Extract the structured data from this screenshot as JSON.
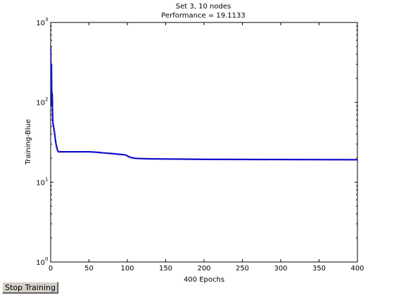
{
  "figure": {
    "title_line1": "Set 3, 10 nodes",
    "title_line2": "Performance = 19.1133"
  },
  "stop_button_label": "Stop Training",
  "colors": {
    "line": "#1010cc",
    "axes": "#000000",
    "background": "#ffffff",
    "button_face": "#d4d0c8"
  },
  "chart_data": {
    "type": "line",
    "title": "Set 3, 10 nodes\nPerformance = 19.1133",
    "xlabel": "400 Epochs",
    "ylabel": "Training-Blue",
    "xlim": [
      0,
      400
    ],
    "ylim": [
      1,
      1000
    ],
    "yscale": "log",
    "grid": false,
    "xticks": [
      0,
      50,
      100,
      150,
      200,
      250,
      300,
      350,
      400
    ],
    "xtick_labels": [
      "0",
      "50",
      "100",
      "150",
      "200",
      "250",
      "300",
      "350",
      "400"
    ],
    "yticks": [
      1,
      10,
      100,
      1000
    ],
    "ytick_labels": [
      {
        "base": "10",
        "exp": "0"
      },
      {
        "base": "10",
        "exp": "1"
      },
      {
        "base": "10",
        "exp": "2"
      },
      {
        "base": "10",
        "exp": "3"
      }
    ],
    "series": [
      {
        "x": [
          0,
          0.5,
          1,
          1.5,
          2,
          2.5,
          3,
          4,
          5,
          6,
          7,
          8,
          9,
          10,
          12,
          15,
          20,
          30,
          40,
          50,
          60,
          70,
          80,
          90,
          97,
          100,
          103,
          106,
          110,
          115,
          120,
          130,
          150,
          180,
          200,
          250,
          300,
          350,
          400
        ],
        "y": [
          500,
          150,
          300,
          90,
          130,
          70,
          55,
          48,
          42,
          35,
          30,
          27,
          25,
          24,
          24,
          24,
          24,
          24,
          24,
          24,
          23.7,
          23.2,
          22.8,
          22.3,
          22,
          21.3,
          20.6,
          20.2,
          19.9,
          19.8,
          19.7,
          19.6,
          19.5,
          19.4,
          19.3,
          19.25,
          19.2,
          19.15,
          19.1133
        ]
      }
    ]
  }
}
